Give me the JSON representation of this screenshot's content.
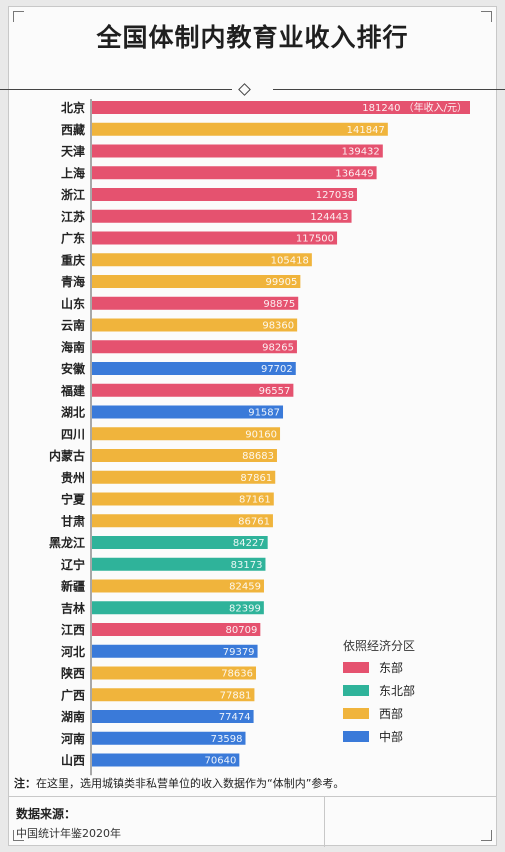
{
  "title": "全国体制内教育业收入排行",
  "note_label": "注：",
  "note_text": "在这里，选用城镇类非私营单位的收入数据作为“体制内”参考。",
  "source_label": "数据来源：",
  "source_text": "中国统计年鉴2020年",
  "colors": {
    "东部": "#e5526f",
    "东北部": "#2fb39a",
    "西部": "#f0b43c",
    "中部": "#3a7ad9"
  },
  "chart_data": {
    "type": "bar",
    "orientation": "horizontal",
    "unit_note": "（年收入/元）",
    "legend_title": "依照经济分区",
    "legend": [
      "东部",
      "东北部",
      "西部",
      "中部"
    ],
    "legend_placement": "bottom-right",
    "categories": [
      "北京",
      "西藏",
      "天津",
      "上海",
      "浙江",
      "江苏",
      "广东",
      "重庆",
      "青海",
      "山东",
      "云南",
      "海南",
      "安徽",
      "福建",
      "湖北",
      "四川",
      "内蒙古",
      "贵州",
      "宁夏",
      "甘肃",
      "黑龙江",
      "辽宁",
      "新疆",
      "吉林",
      "江西",
      "河北",
      "陕西",
      "广西",
      "湖南",
      "河南",
      "山西"
    ],
    "values": [
      181240,
      141847,
      139432,
      136449,
      127038,
      124443,
      117500,
      105418,
      99905,
      98875,
      98360,
      98265,
      97702,
      96557,
      91587,
      90160,
      88683,
      87861,
      87161,
      86761,
      84227,
      83173,
      82459,
      82399,
      80709,
      79379,
      78636,
      77881,
      77474,
      73598,
      70640
    ],
    "regions": [
      "东部",
      "西部",
      "东部",
      "东部",
      "东部",
      "东部",
      "东部",
      "西部",
      "西部",
      "东部",
      "西部",
      "东部",
      "中部",
      "东部",
      "中部",
      "西部",
      "西部",
      "西部",
      "西部",
      "西部",
      "东北部",
      "东北部",
      "西部",
      "东北部",
      "东部",
      "中部",
      "西部",
      "西部",
      "中部",
      "中部",
      "中部"
    ],
    "grid": false
  }
}
